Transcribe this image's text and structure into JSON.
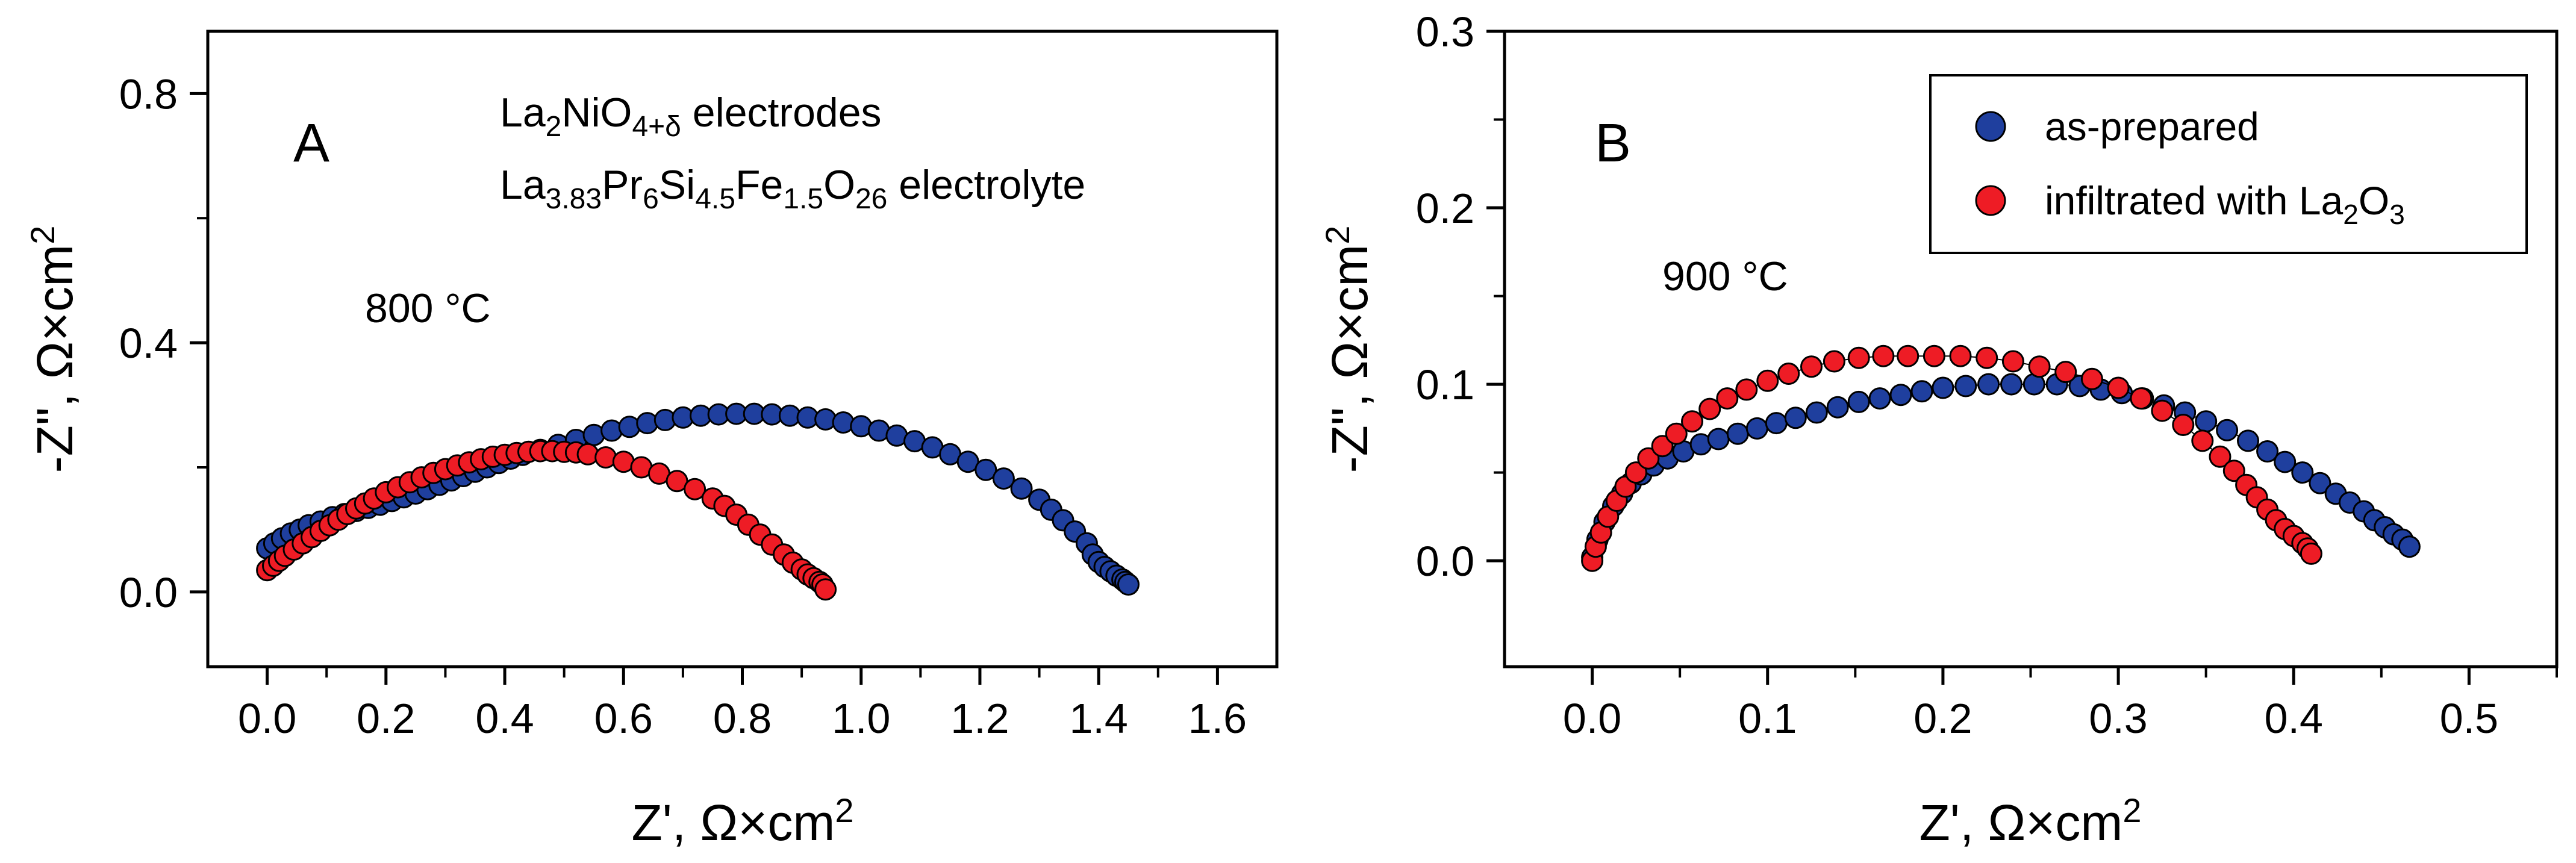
{
  "chart_data": [
    {
      "type": "scatter",
      "panel": "A",
      "xlabel": "Z', Ω×cm²",
      "ylabel": "-Z\", Ω×cm²",
      "xlim": [
        -0.1,
        1.7
      ],
      "ylim": [
        -0.12,
        0.9
      ],
      "xticks": [
        0.0,
        0.2,
        0.4,
        0.6,
        0.8,
        1.0,
        1.2,
        1.4,
        1.6
      ],
      "yticks": [
        0.0,
        0.4,
        0.8
      ],
      "tick_labels_x": [
        "0.0",
        "0.2",
        "0.4",
        "0.6",
        "0.8",
        "1.0",
        "1.2",
        "1.4",
        "1.6"
      ],
      "tick_labels_y": [
        "0.0",
        "0.4",
        "0.8"
      ],
      "annotations": {
        "letter": "A",
        "electrodes_base": "La",
        "electrodes_sub1": "2",
        "electrodes_mid": "NiO",
        "electrodes_sub2": "4+δ",
        "electrodes_tail": " electrodes",
        "electrolyte_p1": "La",
        "electrolyte_s1": "3.83",
        "electrolyte_p2": "Pr",
        "electrolyte_s2": "6",
        "electrolyte_p3": "Si",
        "electrolyte_s3": "4.5",
        "electrolyte_p4": "Fe",
        "electrolyte_s4": "1.5",
        "electrolyte_p5": "O",
        "electrolyte_s5": "26",
        "electrolyte_tail": " electrolyte",
        "temperature": "800 °C"
      },
      "series": [
        {
          "name": "as-prepared",
          "color": "#1f3f9e",
          "points": [
            [
              0.0,
              0.07
            ],
            [
              0.012,
              0.078
            ],
            [
              0.025,
              0.086
            ],
            [
              0.04,
              0.094
            ],
            [
              0.055,
              0.1
            ],
            [
              0.07,
              0.107
            ],
            [
              0.09,
              0.113
            ],
            [
              0.11,
              0.12
            ],
            [
              0.13,
              0.125
            ],
            [
              0.15,
              0.13
            ],
            [
              0.17,
              0.135
            ],
            [
              0.19,
              0.14
            ],
            [
              0.21,
              0.146
            ],
            [
              0.23,
              0.152
            ],
            [
              0.25,
              0.158
            ],
            [
              0.27,
              0.165
            ],
            [
              0.29,
              0.172
            ],
            [
              0.31,
              0.179
            ],
            [
              0.33,
              0.186
            ],
            [
              0.35,
              0.193
            ],
            [
              0.37,
              0.2
            ],
            [
              0.39,
              0.207
            ],
            [
              0.41,
              0.214
            ],
            [
              0.43,
              0.22
            ],
            [
              0.46,
              0.228
            ],
            [
              0.49,
              0.236
            ],
            [
              0.52,
              0.244
            ],
            [
              0.55,
              0.252
            ],
            [
              0.58,
              0.259
            ],
            [
              0.61,
              0.265
            ],
            [
              0.64,
              0.271
            ],
            [
              0.67,
              0.276
            ],
            [
              0.7,
              0.28
            ],
            [
              0.73,
              0.283
            ],
            [
              0.76,
              0.285
            ],
            [
              0.79,
              0.286
            ],
            [
              0.82,
              0.286
            ],
            [
              0.85,
              0.285
            ],
            [
              0.88,
              0.283
            ],
            [
              0.91,
              0.28
            ],
            [
              0.94,
              0.277
            ],
            [
              0.97,
              0.272
            ],
            [
              1.0,
              0.266
            ],
            [
              1.03,
              0.259
            ],
            [
              1.06,
              0.251
            ],
            [
              1.09,
              0.242
            ],
            [
              1.12,
              0.232
            ],
            [
              1.15,
              0.221
            ],
            [
              1.18,
              0.209
            ],
            [
              1.21,
              0.196
            ],
            [
              1.24,
              0.182
            ],
            [
              1.27,
              0.166
            ],
            [
              1.3,
              0.148
            ],
            [
              1.32,
              0.132
            ],
            [
              1.34,
              0.115
            ],
            [
              1.36,
              0.097
            ],
            [
              1.38,
              0.078
            ],
            [
              1.39,
              0.06
            ],
            [
              1.4,
              0.048
            ],
            [
              1.41,
              0.04
            ],
            [
              1.42,
              0.033
            ],
            [
              1.43,
              0.026
            ],
            [
              1.44,
              0.02
            ],
            [
              1.445,
              0.016
            ],
            [
              1.45,
              0.012
            ]
          ]
        },
        {
          "name": "infiltrated with La2O3",
          "color": "#ee1c25",
          "points": [
            [
              0.0,
              0.035
            ],
            [
              0.01,
              0.042
            ],
            [
              0.02,
              0.05
            ],
            [
              0.03,
              0.058
            ],
            [
              0.045,
              0.068
            ],
            [
              0.06,
              0.078
            ],
            [
              0.075,
              0.088
            ],
            [
              0.09,
              0.098
            ],
            [
              0.105,
              0.107
            ],
            [
              0.12,
              0.116
            ],
            [
              0.135,
              0.125
            ],
            [
              0.15,
              0.134
            ],
            [
              0.165,
              0.142
            ],
            [
              0.18,
              0.15
            ],
            [
              0.2,
              0.16
            ],
            [
              0.22,
              0.168
            ],
            [
              0.24,
              0.176
            ],
            [
              0.26,
              0.184
            ],
            [
              0.28,
              0.191
            ],
            [
              0.3,
              0.197
            ],
            [
              0.32,
              0.203
            ],
            [
              0.34,
              0.208
            ],
            [
              0.36,
              0.213
            ],
            [
              0.38,
              0.217
            ],
            [
              0.4,
              0.22
            ],
            [
              0.42,
              0.223
            ],
            [
              0.44,
              0.225
            ],
            [
              0.46,
              0.226
            ],
            [
              0.48,
              0.226
            ],
            [
              0.5,
              0.225
            ],
            [
              0.52,
              0.224
            ],
            [
              0.54,
              0.221
            ],
            [
              0.57,
              0.216
            ],
            [
              0.6,
              0.209
            ],
            [
              0.63,
              0.2
            ],
            [
              0.66,
              0.19
            ],
            [
              0.69,
              0.178
            ],
            [
              0.72,
              0.165
            ],
            [
              0.75,
              0.15
            ],
            [
              0.77,
              0.138
            ],
            [
              0.79,
              0.124
            ],
            [
              0.81,
              0.108
            ],
            [
              0.83,
              0.092
            ],
            [
              0.85,
              0.076
            ],
            [
              0.87,
              0.06
            ],
            [
              0.885,
              0.047
            ],
            [
              0.9,
              0.036
            ],
            [
              0.91,
              0.028
            ],
            [
              0.92,
              0.022
            ],
            [
              0.93,
              0.016
            ],
            [
              0.935,
              0.012
            ],
            [
              0.94,
              0.004
            ]
          ]
        }
      ]
    },
    {
      "type": "scatter",
      "panel": "B",
      "xlabel": "Z', Ω×cm²",
      "ylabel": "-Z\", Ω×cm²",
      "xlim": [
        -0.05,
        0.55
      ],
      "ylim": [
        -0.06,
        0.3
      ],
      "xticks": [
        0.0,
        0.1,
        0.2,
        0.3,
        0.4,
        0.5
      ],
      "yticks": [
        0.0,
        0.1,
        0.2,
        0.3
      ],
      "tick_labels_x": [
        "0.0",
        "0.1",
        "0.2",
        "0.3",
        "0.4",
        "0.5"
      ],
      "tick_labels_y": [
        "0.0",
        "0.1",
        "0.2",
        "0.3"
      ],
      "annotations": {
        "letter": "B",
        "temperature": "900 °C"
      },
      "legend": {
        "position": "top-right",
        "entries": [
          {
            "label": "as-prepared",
            "color": "#1f3f9e"
          },
          {
            "label_base": "infiltrated with La",
            "label_sub1": "2",
            "label_mid": "O",
            "label_sub2": "3",
            "color": "#ee1c25"
          }
        ]
      },
      "series": [
        {
          "name": "as-prepared",
          "color": "#1f3f9e",
          "points": [
            [
              0.0,
              0.002
            ],
            [
              0.003,
              0.012
            ],
            [
              0.007,
              0.022
            ],
            [
              0.012,
              0.031
            ],
            [
              0.017,
              0.038
            ],
            [
              0.022,
              0.044
            ],
            [
              0.028,
              0.049
            ],
            [
              0.035,
              0.054
            ],
            [
              0.043,
              0.058
            ],
            [
              0.052,
              0.062
            ],
            [
              0.062,
              0.066
            ],
            [
              0.072,
              0.069
            ],
            [
              0.083,
              0.072
            ],
            [
              0.094,
              0.075
            ],
            [
              0.105,
              0.078
            ],
            [
              0.116,
              0.081
            ],
            [
              0.128,
              0.084
            ],
            [
              0.14,
              0.087
            ],
            [
              0.152,
              0.09
            ],
            [
              0.164,
              0.092
            ],
            [
              0.176,
              0.094
            ],
            [
              0.188,
              0.096
            ],
            [
              0.2,
              0.098
            ],
            [
              0.213,
              0.099
            ],
            [
              0.226,
              0.1
            ],
            [
              0.239,
              0.1
            ],
            [
              0.252,
              0.1
            ],
            [
              0.265,
              0.1
            ],
            [
              0.278,
              0.099
            ],
            [
              0.29,
              0.097
            ],
            [
              0.302,
              0.095
            ],
            [
              0.314,
              0.092
            ],
            [
              0.326,
              0.088
            ],
            [
              0.338,
              0.084
            ],
            [
              0.35,
              0.079
            ],
            [
              0.362,
              0.074
            ],
            [
              0.374,
              0.068
            ],
            [
              0.385,
              0.062
            ],
            [
              0.395,
              0.056
            ],
            [
              0.405,
              0.05
            ],
            [
              0.415,
              0.044
            ],
            [
              0.424,
              0.038
            ],
            [
              0.432,
              0.033
            ],
            [
              0.44,
              0.028
            ],
            [
              0.446,
              0.023
            ],
            [
              0.452,
              0.019
            ],
            [
              0.457,
              0.015
            ],
            [
              0.462,
              0.012
            ],
            [
              0.466,
              0.008
            ]
          ]
        },
        {
          "name": "infiltrated with La2O3",
          "color": "#ee1c25",
          "points": [
            [
              0.0,
              0.0
            ],
            [
              0.002,
              0.008
            ],
            [
              0.005,
              0.016
            ],
            [
              0.009,
              0.025
            ],
            [
              0.014,
              0.034
            ],
            [
              0.019,
              0.042
            ],
            [
              0.025,
              0.05
            ],
            [
              0.032,
              0.058
            ],
            [
              0.04,
              0.065
            ],
            [
              0.048,
              0.072
            ],
            [
              0.057,
              0.079
            ],
            [
              0.067,
              0.086
            ],
            [
              0.077,
              0.092
            ],
            [
              0.088,
              0.097
            ],
            [
              0.1,
              0.102
            ],
            [
              0.112,
              0.106
            ],
            [
              0.125,
              0.11
            ],
            [
              0.138,
              0.113
            ],
            [
              0.152,
              0.115
            ],
            [
              0.166,
              0.116
            ],
            [
              0.18,
              0.116
            ],
            [
              0.195,
              0.116
            ],
            [
              0.21,
              0.116
            ],
            [
              0.225,
              0.115
            ],
            [
              0.24,
              0.113
            ],
            [
              0.255,
              0.11
            ],
            [
              0.27,
              0.107
            ],
            [
              0.285,
              0.103
            ],
            [
              0.3,
              0.098
            ],
            [
              0.313,
              0.092
            ],
            [
              0.325,
              0.085
            ],
            [
              0.337,
              0.077
            ],
            [
              0.348,
              0.068
            ],
            [
              0.358,
              0.059
            ],
            [
              0.366,
              0.051
            ],
            [
              0.373,
              0.043
            ],
            [
              0.379,
              0.036
            ],
            [
              0.385,
              0.029
            ],
            [
              0.39,
              0.023
            ],
            [
              0.395,
              0.018
            ],
            [
              0.4,
              0.014
            ],
            [
              0.405,
              0.01
            ],
            [
              0.408,
              0.007
            ],
            [
              0.41,
              0.004
            ]
          ]
        }
      ]
    }
  ]
}
